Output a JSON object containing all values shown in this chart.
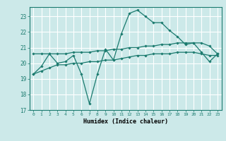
{
  "title": "",
  "xlabel": "Humidex (Indice chaleur)",
  "ylabel": "",
  "bg_color": "#cce9e9",
  "grid_color": "#ffffff",
  "line_color": "#1a7a6e",
  "xlim": [
    -0.5,
    23.5
  ],
  "ylim": [
    17,
    23.6
  ],
  "yticks": [
    17,
    18,
    19,
    20,
    21,
    22,
    23
  ],
  "xticks": [
    0,
    1,
    2,
    3,
    4,
    5,
    6,
    7,
    8,
    9,
    10,
    11,
    12,
    13,
    14,
    15,
    16,
    17,
    18,
    19,
    20,
    21,
    22,
    23
  ],
  "line1_x": [
    0,
    1,
    2,
    3,
    4,
    5,
    6,
    7,
    8,
    9,
    10,
    11,
    12,
    13,
    14,
    15,
    16,
    17,
    18,
    19,
    20,
    21,
    22,
    23
  ],
  "line1_y": [
    19.3,
    19.8,
    20.6,
    20.0,
    20.1,
    20.5,
    19.3,
    17.4,
    19.3,
    20.9,
    20.2,
    21.9,
    23.2,
    23.4,
    23.0,
    22.6,
    22.6,
    22.1,
    21.7,
    21.2,
    21.3,
    20.7,
    20.1,
    20.6
  ],
  "line2_x": [
    0,
    1,
    2,
    3,
    4,
    5,
    6,
    7,
    8,
    9,
    10,
    11,
    12,
    13,
    14,
    15,
    16,
    17,
    18,
    19,
    20,
    21,
    22,
    23
  ],
  "line2_y": [
    20.6,
    20.6,
    20.6,
    20.6,
    20.6,
    20.7,
    20.7,
    20.7,
    20.8,
    20.8,
    20.9,
    20.9,
    21.0,
    21.0,
    21.1,
    21.1,
    21.2,
    21.2,
    21.3,
    21.3,
    21.3,
    21.3,
    21.1,
    20.6
  ],
  "line3_x": [
    0,
    1,
    2,
    3,
    4,
    5,
    6,
    7,
    8,
    9,
    10,
    11,
    12,
    13,
    14,
    15,
    16,
    17,
    18,
    19,
    20,
    21,
    22,
    23
  ],
  "line3_y": [
    19.3,
    19.5,
    19.7,
    19.9,
    19.9,
    20.0,
    20.0,
    20.1,
    20.1,
    20.2,
    20.2,
    20.3,
    20.4,
    20.5,
    20.5,
    20.6,
    20.6,
    20.6,
    20.7,
    20.7,
    20.7,
    20.6,
    20.5,
    20.5
  ]
}
